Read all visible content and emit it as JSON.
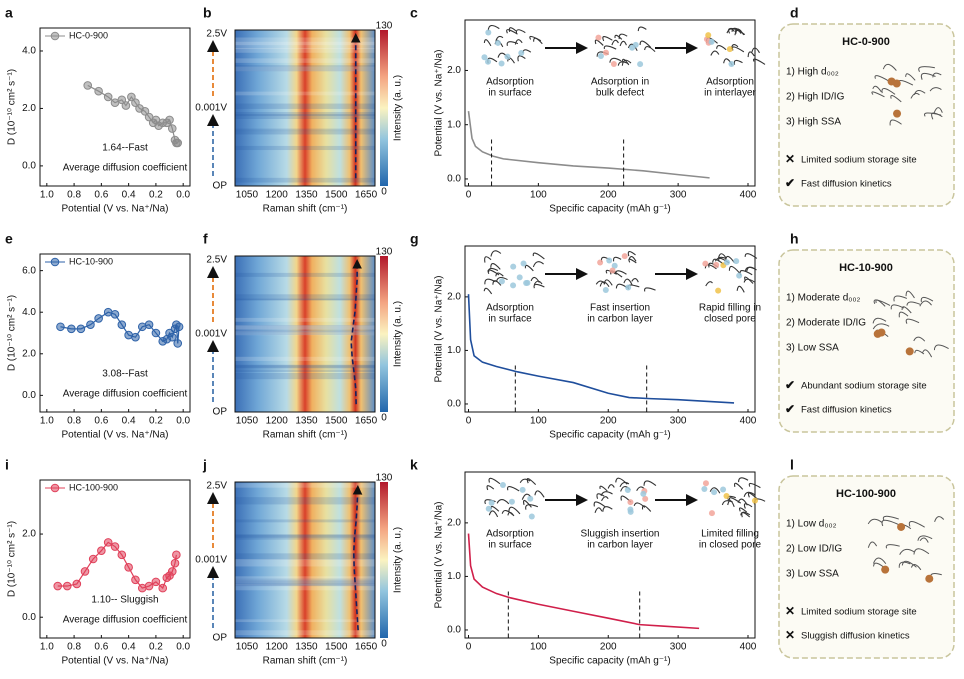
{
  "chart_data": [
    {
      "label": "a",
      "type": "line",
      "markers": true,
      "x": [
        0.7,
        0.62,
        0.55,
        0.5,
        0.45,
        0.42,
        0.38,
        0.35,
        0.32,
        0.28,
        0.25,
        0.22,
        0.2,
        0.18,
        0.15,
        0.12,
        0.1,
        0.08,
        0.06,
        0.05,
        0.04
      ],
      "series": [
        {
          "name": "HC-0-900",
          "color": "#8c8c8c",
          "values": [
            2.8,
            2.6,
            2.4,
            2.2,
            2.3,
            2.1,
            2.4,
            2.2,
            2.0,
            1.9,
            1.7,
            1.5,
            1.6,
            1.4,
            1.5,
            1.5,
            1.6,
            1.3,
            0.9,
            0.8,
            0.8
          ]
        }
      ],
      "xlim": [
        1.05,
        -0.05
      ],
      "xticks": [
        {
          "value": 1,
          "label": "1.0"
        },
        0.8,
        0.6,
        0.4,
        0.2,
        {
          "value": 0,
          "label": "0.0"
        }
      ],
      "ylim": [
        -0.7,
        4.8
      ],
      "yticks": [
        {
          "value": 0,
          "label": "0.0"
        },
        {
          "value": 2,
          "label": "2.0"
        },
        {
          "value": 4,
          "label": "4.0"
        }
      ],
      "x_label": "Potential (V vs. Na⁺/Na)",
      "y_label": "D (10⁻¹⁰ cm² s⁻¹)",
      "annotations": [
        "1.64--Fast",
        "Average diffusion coefficient"
      ]
    },
    {
      "label": "b",
      "type": "heatmap",
      "xlim": [
        990,
        1695
      ],
      "xticks": [
        1050,
        1200,
        1350,
        1500,
        1650
      ],
      "row_labels": [
        "2.5V",
        "0.001V",
        "OP"
      ],
      "clim": [
        0,
        130
      ],
      "cticks": [
        0,
        130
      ],
      "colorbar_label": "Intensity (a. u.)",
      "x_label": "Raman shift (cm⁻¹)",
      "peak": [
        1598,
        1598,
        1598,
        1598,
        1598,
        1598,
        1598,
        1598,
        1598,
        1598
      ]
    },
    {
      "label": "c",
      "type": "line",
      "markers": false,
      "x": [
        0,
        5,
        10,
        20,
        35,
        50,
        100,
        150,
        200,
        250,
        300,
        345
      ],
      "values": [
        1.25,
        0.75,
        0.6,
        0.5,
        0.42,
        0.37,
        0.3,
        0.24,
        0.2,
        0.15,
        0.08,
        0.02
      ],
      "color": "#8c8c8c",
      "xlim": [
        -5,
        410
      ],
      "xticks": [
        0,
        100,
        200,
        300,
        400
      ],
      "ylim": [
        -0.13,
        2.93
      ],
      "yticks": [
        {
          "value": 0,
          "label": "0.0"
        },
        {
          "value": 1,
          "label": "1.0"
        },
        {
          "value": 2,
          "label": "2.0"
        }
      ],
      "dashed_x": [
        33,
        222
      ],
      "x_label": "Specific capacity (mAh g⁻¹)",
      "y_label": "Potential (V vs. Na⁺/Na)",
      "stages": [
        [
          "Adsorption",
          "in surface"
        ],
        [
          "Adsorption in",
          "bulk defect"
        ],
        [
          "Adsorption",
          "in interlayer"
        ]
      ]
    },
    {
      "label": "e",
      "type": "line",
      "markers": true,
      "x": [
        0.9,
        0.82,
        0.75,
        0.68,
        0.62,
        0.55,
        0.5,
        0.45,
        0.4,
        0.35,
        0.3,
        0.25,
        0.2,
        0.15,
        0.12,
        0.1,
        0.08,
        0.06,
        0.05,
        0.04,
        0.03
      ],
      "series": [
        {
          "name": "HC-10-900",
          "color": "#2e62a8",
          "values": [
            3.3,
            3.2,
            3.2,
            3.4,
            3.7,
            4.0,
            3.9,
            3.4,
            2.9,
            2.8,
            3.3,
            3.4,
            3.0,
            2.6,
            2.7,
            3.0,
            2.8,
            3.2,
            3.4,
            2.5,
            3.3
          ]
        }
      ],
      "xlim": [
        1.05,
        -0.05
      ],
      "xticks": [
        {
          "value": 1,
          "label": "1.0"
        },
        0.8,
        0.6,
        0.4,
        0.2,
        {
          "value": 0,
          "label": "0.0"
        }
      ],
      "ylim": [
        -0.8,
        6.8
      ],
      "yticks": [
        {
          "value": 0,
          "label": "0.0"
        },
        {
          "value": 2,
          "label": "2.0"
        },
        {
          "value": 4,
          "label": "4.0"
        },
        {
          "value": 6,
          "label": "6.0"
        }
      ],
      "x_label": "Potential (V vs. Na⁺/Na)",
      "y_label": "D (10⁻¹⁰ cm² s⁻¹)",
      "annotations": [
        "3.08--Fast",
        "Average diffusion coefficient"
      ]
    },
    {
      "label": "f",
      "type": "heatmap",
      "xlim": [
        990,
        1695
      ],
      "xticks": [
        1050,
        1200,
        1350,
        1500,
        1650
      ],
      "row_labels": [
        "2.5V",
        "0.001V",
        "OP"
      ],
      "clim": [
        0,
        130
      ],
      "cticks": [
        0,
        130
      ],
      "colorbar_label": "Intensity (a. u.)",
      "x_label": "Raman shift (cm⁻¹)",
      "peak": [
        1600,
        1598,
        1590,
        1580,
        1575,
        1585,
        1595,
        1600,
        1605,
        1605
      ]
    },
    {
      "label": "g",
      "type": "line",
      "markers": false,
      "x": [
        0,
        3,
        8,
        20,
        40,
        70,
        100,
        150,
        200,
        230,
        260,
        300,
        340,
        380
      ],
      "values": [
        2.05,
        1.2,
        0.9,
        0.78,
        0.7,
        0.6,
        0.52,
        0.4,
        0.2,
        0.12,
        0.1,
        0.08,
        0.05,
        0.02
      ],
      "color": "#1f4e9c",
      "xlim": [
        -5,
        410
      ],
      "xticks": [
        0,
        100,
        200,
        300,
        400
      ],
      "ylim": [
        -0.15,
        2.95
      ],
      "yticks": [
        {
          "value": 0,
          "label": "0.0"
        },
        {
          "value": 1,
          "label": "1.0"
        },
        {
          "value": 2,
          "label": "2.0"
        }
      ],
      "dashed_x": [
        67,
        255
      ],
      "x_label": "Specific capacity (mAh g⁻¹)",
      "y_label": "Potential (V vs. Na⁺/Na)",
      "stages": [
        [
          "Adsorption",
          "in surface"
        ],
        [
          "Fast insertion",
          "in carbon layer"
        ],
        [
          "Rapid filling in",
          "closed pore"
        ]
      ]
    },
    {
      "label": "i",
      "type": "line",
      "markers": true,
      "x": [
        0.92,
        0.85,
        0.78,
        0.72,
        0.66,
        0.6,
        0.55,
        0.5,
        0.45,
        0.4,
        0.35,
        0.3,
        0.25,
        0.2,
        0.15,
        0.12,
        0.1,
        0.08,
        0.06,
        0.05
      ],
      "series": [
        {
          "name": "HC-100-900",
          "color": "#e0405a",
          "values": [
            0.75,
            0.75,
            0.8,
            1.1,
            1.4,
            1.6,
            1.8,
            1.7,
            1.5,
            1.2,
            0.9,
            0.7,
            0.75,
            0.85,
            0.7,
            0.95,
            1.0,
            1.1,
            1.3,
            1.5
          ]
        }
      ],
      "xlim": [
        1.05,
        -0.05
      ],
      "xticks": [
        {
          "value": 1,
          "label": "1.0"
        },
        0.8,
        0.6,
        0.4,
        0.2,
        {
          "value": 0,
          "label": "0.0"
        }
      ],
      "ylim": [
        -0.5,
        3.3
      ],
      "yticks": [
        {
          "value": 0,
          "label": "0.0"
        },
        {
          "value": 2,
          "label": "2.0"
        }
      ],
      "x_label": "Potential (V vs. Na⁺/Na)",
      "y_label": "D (10⁻¹⁰ cm² s⁻¹)",
      "annotations": [
        "1.10-- Sluggish",
        "Average diffusion coefficient"
      ]
    },
    {
      "label": "j",
      "type": "heatmap",
      "xlim": [
        990,
        1695
      ],
      "xticks": [
        1050,
        1200,
        1350,
        1500,
        1650
      ],
      "row_labels": [
        "2.5V",
        "0.001V",
        "OP"
      ],
      "clim": [
        0,
        130
      ],
      "cticks": [
        0,
        130
      ],
      "colorbar_label": "Intensity (a. u.)",
      "x_label": "Raman shift (cm⁻¹)",
      "peak": [
        1610,
        1605,
        1600,
        1595,
        1590,
        1588,
        1592,
        1600,
        1605,
        1608
      ]
    },
    {
      "label": "k",
      "type": "line",
      "markers": false,
      "x": [
        0,
        3,
        8,
        20,
        40,
        60,
        100,
        150,
        200,
        245,
        280,
        330
      ],
      "values": [
        1.8,
        1.2,
        0.95,
        0.8,
        0.68,
        0.6,
        0.48,
        0.35,
        0.22,
        0.1,
        0.07,
        0.03
      ],
      "color": "#d01f4a",
      "xlim": [
        -5,
        410
      ],
      "xticks": [
        0,
        100,
        200,
        300,
        400
      ],
      "ylim": [
        -0.15,
        2.95
      ],
      "yticks": [
        {
          "value": 0,
          "label": "0.0"
        },
        {
          "value": 1,
          "label": "1.0"
        },
        {
          "value": 2,
          "label": "2.0"
        }
      ],
      "dashed_x": [
        57,
        245
      ],
      "x_label": "Specific capacity (mAh g⁻¹)",
      "y_label": "Potential (V vs. Na⁺/Na)",
      "stages": [
        [
          "Adsorption",
          "in surface"
        ],
        [
          "Sluggish insertion",
          "in carbon layer"
        ],
        [
          "Limited filling",
          "in closed pore"
        ]
      ]
    }
  ],
  "schemes": [
    {
      "label": "d",
      "title": "HC-0-900",
      "title_color": "#555555",
      "properties": [
        "1) High d₀₀₂",
        "2) High ID/IG",
        "3) High SSA"
      ],
      "notes": [
        {
          "mark": "cross",
          "text": "Limited sodium storage site"
        },
        {
          "mark": "check",
          "text": "Fast diffusion kinetics"
        }
      ]
    },
    {
      "label": "h",
      "title": "HC-10-900",
      "title_color": "#2e62a8",
      "properties": [
        "1) Moderate d₀₀₂",
        "2) Moderate ID/IG",
        "3) Low SSA"
      ],
      "notes": [
        {
          "mark": "check",
          "text": "Abundant sodium storage site"
        },
        {
          "mark": "check",
          "text": "Fast diffusion kinetics"
        }
      ]
    },
    {
      "label": "l",
      "title": "HC-100-900",
      "title_color": "#c0392b",
      "properties": [
        "1) Low d₀₀₂",
        "2) Low ID/IG",
        "3) Low SSA"
      ],
      "notes": [
        {
          "mark": "cross",
          "text": "Limited sodium storage site"
        },
        {
          "mark": "cross",
          "text": "Sluggish diffusion kinetics"
        }
      ]
    }
  ]
}
